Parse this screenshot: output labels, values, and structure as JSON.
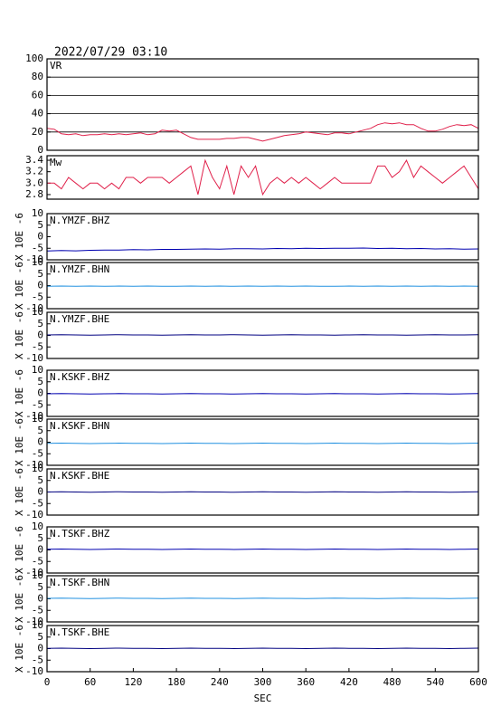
{
  "chart_data": [
    {
      "type": "line",
      "title": "2022/07/29 03:10",
      "xlim": [
        0,
        600
      ],
      "ylim": [
        0,
        100
      ],
      "yticks": [
        0,
        20,
        40,
        60,
        80,
        100
      ],
      "grid": true,
      "x": [
        0,
        10,
        20,
        30,
        40,
        50,
        60,
        70,
        80,
        90,
        100,
        110,
        120,
        130,
        140,
        150,
        160,
        170,
        180,
        190,
        200,
        210,
        220,
        230,
        240,
        250,
        260,
        270,
        280,
        290,
        300,
        310,
        320,
        330,
        340,
        350,
        360,
        370,
        380,
        390,
        400,
        410,
        420,
        430,
        440,
        450,
        460,
        470,
        480,
        490,
        500,
        510,
        520,
        530,
        540,
        550,
        560,
        570,
        580,
        590,
        600
      ],
      "series": [
        {
          "name": "VR",
          "color": "#e0204a",
          "values": [
            24,
            23,
            18,
            17,
            18,
            16,
            17,
            17,
            18,
            17,
            18,
            17,
            18,
            19,
            17,
            18,
            22,
            21,
            22,
            18,
            14,
            12,
            12,
            12,
            12,
            13,
            13,
            14,
            14,
            12,
            10,
            12,
            14,
            16,
            17,
            18,
            20,
            19,
            18,
            17,
            19,
            19,
            18,
            20,
            22,
            24,
            28,
            30,
            29,
            30,
            28,
            28,
            24,
            21,
            21,
            23,
            26,
            28,
            27,
            28,
            24
          ]
        }
      ]
    },
    {
      "type": "line",
      "xlim": [
        0,
        600
      ],
      "ylim": [
        2.72,
        3.48
      ],
      "yticks": [
        2.8,
        {
          "value": 3,
          "label": "3.0"
        },
        3.2,
        3.4
      ],
      "x": [
        0,
        10,
        20,
        30,
        40,
        50,
        60,
        70,
        80,
        90,
        100,
        110,
        120,
        130,
        140,
        150,
        160,
        170,
        180,
        190,
        200,
        210,
        220,
        230,
        240,
        250,
        260,
        270,
        280,
        290,
        300,
        310,
        320,
        330,
        340,
        350,
        360,
        370,
        380,
        390,
        400,
        410,
        420,
        430,
        440,
        450,
        460,
        470,
        480,
        490,
        500,
        510,
        520,
        530,
        540,
        550,
        560,
        570,
        580,
        590,
        600
      ],
      "series": [
        {
          "name": "Mw",
          "color": "#e0204a",
          "values": [
            3.0,
            3.0,
            2.9,
            3.1,
            3.0,
            2.9,
            3.0,
            3.0,
            2.9,
            3.0,
            2.9,
            3.1,
            3.1,
            3.0,
            3.1,
            3.1,
            3.1,
            3.0,
            3.1,
            3.2,
            3.3,
            2.8,
            3.4,
            3.1,
            2.9,
            3.3,
            2.8,
            3.3,
            3.1,
            3.3,
            2.8,
            3.0,
            3.1,
            3.0,
            3.1,
            3.0,
            3.1,
            3.0,
            2.9,
            3.0,
            3.1,
            3.0,
            3.0,
            3.0,
            3.0,
            3.0,
            3.3,
            3.3,
            3.1,
            3.2,
            3.4,
            3.1,
            3.3,
            3.2,
            3.1,
            3.0,
            3.1,
            3.2,
            3.3,
            3.1,
            2.9
          ]
        }
      ]
    },
    {
      "type": "line",
      "xlim": [
        0,
        600
      ],
      "ylim": [
        -10,
        10
      ],
      "yticks": [
        -10,
        -5,
        0,
        5,
        10
      ],
      "ylabel": "X 10E -6",
      "x": [
        0,
        20,
        40,
        60,
        80,
        100,
        120,
        140,
        160,
        180,
        200,
        220,
        240,
        260,
        280,
        300,
        320,
        340,
        360,
        380,
        400,
        420,
        440,
        460,
        480,
        500,
        520,
        540,
        560,
        580,
        600
      ],
      "series": [
        {
          "name": "N.YMZF.BHZ",
          "color": "#0000b0",
          "values": [
            -6.2,
            -6.0,
            -6.1,
            -5.9,
            -5.8,
            -5.8,
            -5.6,
            -5.7,
            -5.5,
            -5.5,
            -5.4,
            -5.3,
            -5.4,
            -5.2,
            -5.2,
            -5.3,
            -5.1,
            -5.2,
            -5.0,
            -5.1,
            -5.0,
            -5.0,
            -4.9,
            -5.1,
            -5.0,
            -5.2,
            -5.1,
            -5.3,
            -5.2,
            -5.4,
            -5.3
          ]
        }
      ]
    },
    {
      "type": "line",
      "xlim": [
        0,
        600
      ],
      "ylim": [
        -10,
        10
      ],
      "yticks": [
        -10,
        -5,
        0,
        5,
        10
      ],
      "ylabel": "X 10E -6",
      "x": [
        0,
        20,
        40,
        60,
        80,
        100,
        120,
        140,
        160,
        180,
        200,
        220,
        240,
        260,
        280,
        300,
        320,
        340,
        360,
        380,
        400,
        420,
        440,
        460,
        480,
        500,
        520,
        540,
        560,
        580,
        600
      ],
      "series": [
        {
          "name": "N.YMZF.BHN",
          "color": "#2090e0",
          "values": [
            -0.3,
            -0.2,
            -0.3,
            -0.2,
            -0.3,
            -0.2,
            -0.3,
            -0.2,
            -0.3,
            -0.3,
            -0.2,
            -0.3,
            -0.2,
            -0.3,
            -0.2,
            -0.3,
            -0.2,
            -0.3,
            -0.2,
            -0.3,
            -0.3,
            -0.2,
            -0.3,
            -0.2,
            -0.3,
            -0.2,
            -0.3,
            -0.2,
            -0.3,
            -0.2,
            -0.3
          ]
        }
      ]
    },
    {
      "type": "line",
      "xlim": [
        0,
        600
      ],
      "ylim": [
        -10,
        10
      ],
      "yticks": [
        -10,
        -5,
        0,
        5,
        10
      ],
      "ylabel": "X 10E -6",
      "x": [
        0,
        20,
        40,
        60,
        80,
        100,
        120,
        140,
        160,
        180,
        200,
        220,
        240,
        260,
        280,
        300,
        320,
        340,
        360,
        380,
        400,
        420,
        440,
        460,
        480,
        500,
        520,
        540,
        560,
        580,
        600
      ],
      "series": [
        {
          "name": "N.YMZF.BHE",
          "color": "#000080",
          "values": [
            0.2,
            0.3,
            0.2,
            0.1,
            0.2,
            0.3,
            0.2,
            0.2,
            0.1,
            0.2,
            0.3,
            0.2,
            0.2,
            0.3,
            0.2,
            0.1,
            0.2,
            0.3,
            0.2,
            0.2,
            0.1,
            0.2,
            0.3,
            0.2,
            0.2,
            0.1,
            0.2,
            0.3,
            0.2,
            0.2,
            0.3
          ]
        }
      ]
    },
    {
      "type": "line",
      "xlim": [
        0,
        600
      ],
      "ylim": [
        -10,
        10
      ],
      "yticks": [
        -10,
        -5,
        0,
        5,
        10
      ],
      "ylabel": "X 10E -6",
      "x": [
        0,
        20,
        40,
        60,
        80,
        100,
        120,
        140,
        160,
        180,
        200,
        220,
        240,
        260,
        280,
        300,
        320,
        340,
        360,
        380,
        400,
        420,
        440,
        460,
        480,
        500,
        520,
        540,
        560,
        580,
        600
      ],
      "series": [
        {
          "name": "N.KSKF.BHZ",
          "color": "#0000b0",
          "values": [
            -0.2,
            -0.1,
            -0.2,
            -0.3,
            -0.2,
            -0.1,
            -0.2,
            -0.2,
            -0.3,
            -0.2,
            -0.1,
            -0.2,
            -0.2,
            -0.3,
            -0.2,
            -0.1,
            -0.2,
            -0.2,
            -0.3,
            -0.2,
            -0.1,
            -0.2,
            -0.2,
            -0.3,
            -0.2,
            -0.1,
            -0.2,
            -0.2,
            -0.3,
            -0.2,
            -0.1
          ]
        }
      ]
    },
    {
      "type": "line",
      "xlim": [
        0,
        600
      ],
      "ylim": [
        -10,
        10
      ],
      "yticks": [
        -10,
        -5,
        0,
        5,
        10
      ],
      "ylabel": "X 10E -6",
      "x": [
        0,
        20,
        40,
        60,
        80,
        100,
        120,
        140,
        160,
        180,
        200,
        220,
        240,
        260,
        280,
        300,
        320,
        340,
        360,
        380,
        400,
        420,
        440,
        460,
        480,
        500,
        520,
        540,
        560,
        580,
        600
      ],
      "series": [
        {
          "name": "N.KSKF.BHN",
          "color": "#2090e0",
          "values": [
            -0.5,
            -0.4,
            -0.5,
            -0.6,
            -0.5,
            -0.4,
            -0.5,
            -0.5,
            -0.6,
            -0.5,
            -0.4,
            -0.5,
            -0.5,
            -0.6,
            -0.5,
            -0.4,
            -0.5,
            -0.5,
            -0.6,
            -0.5,
            -0.4,
            -0.5,
            -0.5,
            -0.6,
            -0.5,
            -0.4,
            -0.5,
            -0.5,
            -0.6,
            -0.5,
            -0.4
          ]
        }
      ]
    },
    {
      "type": "line",
      "xlim": [
        0,
        600
      ],
      "ylim": [
        -10,
        10
      ],
      "yticks": [
        -10,
        -5,
        0,
        5,
        10
      ],
      "ylabel": "X 10E -6",
      "x": [
        0,
        20,
        40,
        60,
        80,
        100,
        120,
        140,
        160,
        180,
        200,
        220,
        240,
        260,
        280,
        300,
        320,
        340,
        360,
        380,
        400,
        420,
        440,
        460,
        480,
        500,
        520,
        540,
        560,
        580,
        600
      ],
      "series": [
        {
          "name": "N.KSKF.BHE",
          "color": "#000080",
          "values": [
            0.0,
            0.1,
            0.0,
            -0.1,
            0.0,
            0.1,
            0.0,
            0.0,
            -0.1,
            0.0,
            0.1,
            0.0,
            0.0,
            -0.1,
            0.0,
            0.1,
            0.0,
            0.0,
            -0.1,
            0.0,
            0.1,
            0.0,
            0.0,
            -0.1,
            0.0,
            0.1,
            0.0,
            0.0,
            -0.1,
            0.0,
            0.1
          ]
        }
      ]
    },
    {
      "type": "line",
      "xlim": [
        0,
        600
      ],
      "ylim": [
        -10,
        10
      ],
      "yticks": [
        -10,
        -5,
        0,
        5,
        10
      ],
      "ylabel": "X 10E -6",
      "x": [
        0,
        20,
        40,
        60,
        80,
        100,
        120,
        140,
        160,
        180,
        200,
        220,
        240,
        260,
        280,
        300,
        320,
        340,
        360,
        380,
        400,
        420,
        440,
        460,
        480,
        500,
        520,
        540,
        560,
        580,
        600
      ],
      "series": [
        {
          "name": "N.TSKF.BHZ",
          "color": "#0000b0",
          "values": [
            0.3,
            0.4,
            0.3,
            0.2,
            0.3,
            0.4,
            0.3,
            0.3,
            0.2,
            0.3,
            0.4,
            0.3,
            0.3,
            0.2,
            0.3,
            0.4,
            0.3,
            0.3,
            0.2,
            0.3,
            0.4,
            0.3,
            0.3,
            0.2,
            0.3,
            0.4,
            0.3,
            0.3,
            0.2,
            0.3,
            0.4
          ]
        }
      ]
    },
    {
      "type": "line",
      "xlim": [
        0,
        600
      ],
      "ylim": [
        -10,
        10
      ],
      "yticks": [
        -10,
        -5,
        0,
        5,
        10
      ],
      "ylabel": "X 10E -6",
      "x": [
        0,
        20,
        40,
        60,
        80,
        100,
        120,
        140,
        160,
        180,
        200,
        220,
        240,
        260,
        280,
        300,
        320,
        340,
        360,
        380,
        400,
        420,
        440,
        460,
        480,
        500,
        520,
        540,
        560,
        580,
        600
      ],
      "series": [
        {
          "name": "N.TSKF.BHN",
          "color": "#2090e0",
          "values": [
            0.2,
            0.3,
            0.2,
            0.1,
            0.2,
            0.3,
            0.2,
            0.2,
            0.1,
            0.2,
            0.3,
            0.2,
            0.2,
            0.1,
            0.2,
            0.3,
            0.2,
            0.2,
            0.1,
            0.2,
            0.3,
            0.2,
            0.2,
            0.1,
            0.2,
            0.3,
            0.2,
            0.2,
            0.1,
            0.2,
            0.3
          ]
        }
      ]
    },
    {
      "type": "line",
      "xlim": [
        0,
        600
      ],
      "ylim": [
        -10,
        10
      ],
      "yticks": [
        -10,
        -5,
        0,
        5,
        10
      ],
      "ylabel": "X 10E -6",
      "xlabel": "SEC",
      "xticks": [
        0,
        60,
        120,
        180,
        240,
        300,
        360,
        420,
        480,
        540,
        600
      ],
      "x": [
        0,
        20,
        40,
        60,
        80,
        100,
        120,
        140,
        160,
        180,
        200,
        220,
        240,
        260,
        280,
        300,
        320,
        340,
        360,
        380,
        400,
        420,
        440,
        460,
        480,
        500,
        520,
        540,
        560,
        580,
        600
      ],
      "series": [
        {
          "name": "N.TSKF.BHE",
          "color": "#000080",
          "values": [
            0.1,
            0.2,
            0.1,
            0.0,
            0.1,
            0.2,
            0.1,
            0.1,
            0.0,
            0.1,
            0.2,
            0.1,
            0.1,
            0.0,
            0.1,
            0.2,
            0.1,
            0.1,
            0.0,
            0.1,
            0.2,
            0.1,
            0.1,
            0.0,
            0.1,
            0.2,
            0.1,
            0.1,
            0.0,
            0.1,
            0.2
          ]
        }
      ]
    }
  ]
}
